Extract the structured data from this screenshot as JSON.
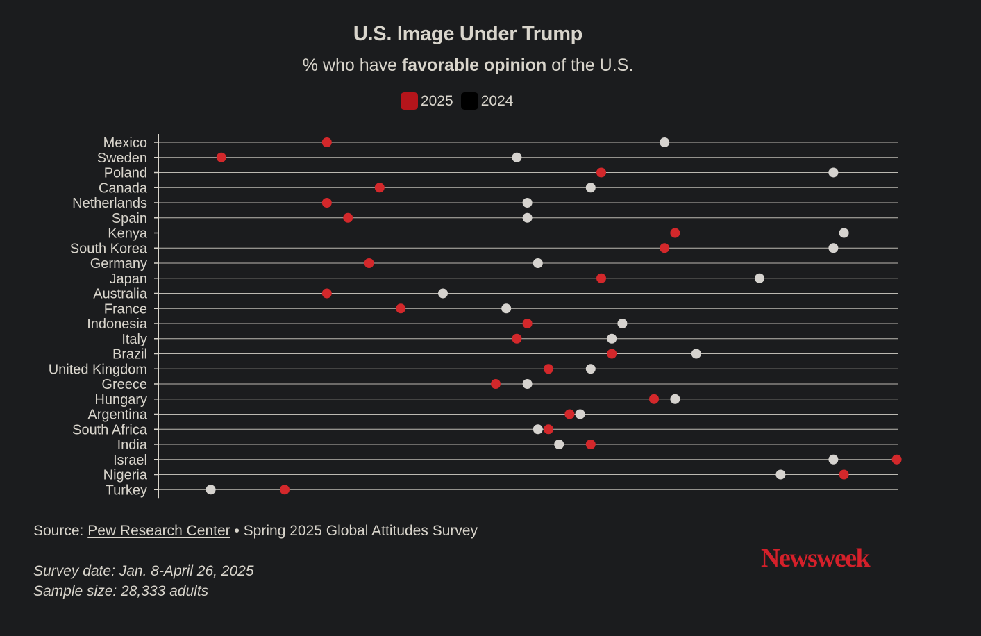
{
  "header": {
    "title": "U.S. Image Under Trump",
    "subtitle_prefix": "% who have ",
    "subtitle_bold": "favorable opinion",
    "subtitle_suffix": " of the U.S."
  },
  "legend": [
    {
      "label": "2025",
      "color": "#b5151b"
    },
    {
      "label": "2024",
      "color": "#000000"
    }
  ],
  "colors": {
    "background": "#1b1c1e",
    "text": "#d9d5cc",
    "dot_2025": "#d3282b",
    "dot_2024": "#d6d3cf",
    "gridline": "#d9d5cc",
    "brand": "#d4202a"
  },
  "chart_data": {
    "type": "scatter",
    "subtype": "dot-plot",
    "title": "U.S. Image Under Trump",
    "subtitle": "% who have favorable opinion of the U.S.",
    "xlabel": "",
    "ylabel": "",
    "xlim": [
      0,
      70
    ],
    "grid": true,
    "legend_position": "top-center",
    "categories": [
      "Mexico",
      "Sweden",
      "Poland",
      "Canada",
      "Netherlands",
      "Spain",
      "Kenya",
      "South Korea",
      "Germany",
      "Japan",
      "Australia",
      "France",
      "Indonesia",
      "Italy",
      "Brazil",
      "United Kingdom",
      "Greece",
      "Hungary",
      "Argentina",
      "South Africa",
      "India",
      "Israel",
      "Nigeria",
      "Turkey"
    ],
    "series": [
      {
        "name": "2025",
        "values": [
          14,
          4,
          40,
          19,
          14,
          16,
          47,
          46,
          18,
          40,
          14,
          21,
          33,
          32,
          41,
          35,
          30,
          45,
          37,
          35,
          39,
          68,
          63,
          10
        ]
      },
      {
        "name": "2024",
        "values": [
          46,
          32,
          62,
          39,
          33,
          33,
          63,
          62,
          34,
          55,
          25,
          31,
          42,
          41,
          49,
          39,
          33,
          47,
          38,
          34,
          36,
          62,
          57,
          3
        ]
      }
    ]
  },
  "footer": {
    "source_prefix": "Source: ",
    "source_link": "Pew Research Center",
    "source_suffix": " • Spring 2025 Global Attitudes Survey",
    "survey_date": "Survey date: Jan. 8-April 26, 2025",
    "sample_size": "Sample size: 28,333 adults"
  },
  "brand": {
    "logo_text": "Newsweek"
  }
}
